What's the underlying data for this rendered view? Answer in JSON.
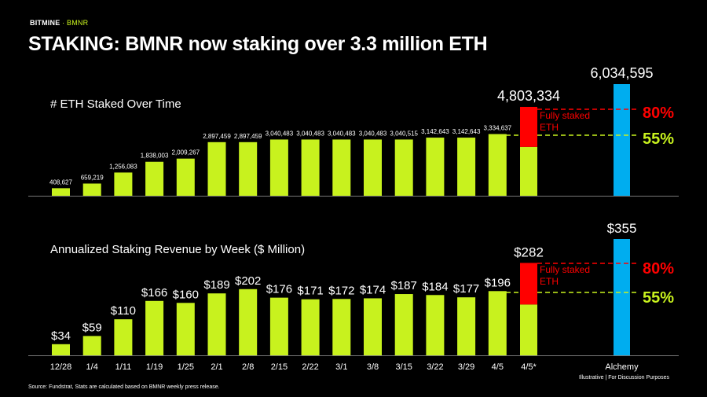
{
  "brand": {
    "name": "BITMINE",
    "separator": " · ",
    "ticker": "BMNR"
  },
  "title": "STAKING: BMNR now staking over 3.3 million ETH",
  "colors": {
    "bar": "#c8f21e",
    "red": "#ff0000",
    "blue": "#00adef",
    "background": "#000000"
  },
  "chart_data": [
    {
      "type": "bar",
      "title": "# ETH Staked Over Time",
      "categories": [
        "12/28",
        "1/4",
        "1/11",
        "1/19",
        "1/25",
        "2/1",
        "2/8",
        "2/15",
        "2/22",
        "3/1",
        "3/8",
        "3/15",
        "3/22",
        "3/29",
        "4/5"
      ],
      "values": [
        408627,
        659219,
        1256083,
        1838003,
        2009267,
        2897459,
        2897459,
        3040483,
        3040483,
        3040483,
        3040483,
        3040515,
        3142643,
        3142643,
        3334637
      ],
      "labels": [
        "408,627",
        "659,219",
        "1,256,083",
        "1,838,003",
        "2,009,267",
        "2,897,459",
        "2,897,459",
        "3,040,483",
        "3,040,483",
        "3,040,483",
        "3,040,483",
        "3,040,515",
        "3,142,643",
        "3,142,643",
        "3,334,637"
      ],
      "projection": {
        "category": "4/5*",
        "value": 4803334,
        "label": "4,803,334",
        "base_fraction": 0.55,
        "annotation": "Fully staked ETH"
      },
      "comparison": {
        "category": "Alchemy",
        "value": 6034595,
        "label": "6,034,595"
      },
      "thresholds": [
        {
          "label": "80%",
          "color": "#ff0000"
        },
        {
          "label": "55%",
          "color": "#c8f21e"
        }
      ]
    },
    {
      "type": "bar",
      "title": "Annualized Staking Revenue by Week ($ Million)",
      "categories": [
        "12/28",
        "1/4",
        "1/11",
        "1/19",
        "1/25",
        "2/1",
        "2/8",
        "2/15",
        "2/22",
        "3/1",
        "3/8",
        "3/15",
        "3/22",
        "3/29",
        "4/5"
      ],
      "values": [
        34,
        59,
        110,
        166,
        160,
        189,
        202,
        176,
        171,
        172,
        174,
        187,
        184,
        177,
        196
      ],
      "labels": [
        "$34",
        "$59",
        "$110",
        "$166",
        "$160",
        "$189",
        "$202",
        "$176",
        "$171",
        "$172",
        "$174",
        "$187",
        "$184",
        "$177",
        "$196"
      ],
      "projection": {
        "category": "4/5*",
        "value": 282,
        "label": "$282",
        "base_fraction": 0.55,
        "annotation": "Fully staked ETH"
      },
      "comparison": {
        "category": "Alchemy",
        "value": 355,
        "label": "$355"
      },
      "thresholds": [
        {
          "label": "80%",
          "color": "#ff0000"
        },
        {
          "label": "55%",
          "color": "#c8f21e"
        }
      ]
    }
  ],
  "annotation_text": [
    "Fully staked",
    "ETH"
  ],
  "footer": {
    "source": "Source: Fundstrat, Stats are calculated based on BMNR weekly press release.",
    "disclaimer": "Illustrative  |  For Discussion Purposes"
  }
}
